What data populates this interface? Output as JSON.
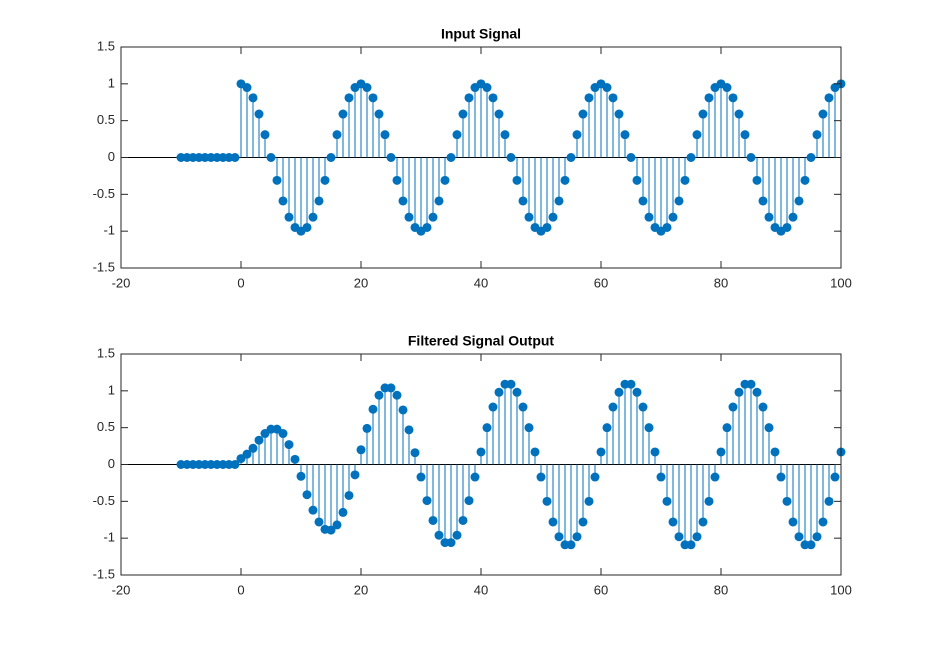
{
  "chart_data": [
    {
      "type": "stem",
      "title": "Input Signal",
      "color": "#0072bd",
      "xlim": [
        -20,
        100
      ],
      "ylim": [
        -1.5,
        1.5
      ],
      "xticks": [
        -20,
        0,
        20,
        40,
        60,
        80,
        100
      ],
      "yticks": [
        -1.5,
        -1,
        -0.5,
        0,
        0.5,
        1,
        1.5
      ],
      "x": [
        -10,
        -9,
        -8,
        -7,
        -6,
        -5,
        -4,
        -3,
        -2,
        -1,
        0,
        1,
        2,
        3,
        4,
        5,
        6,
        7,
        8,
        9,
        10,
        11,
        12,
        13,
        14,
        15,
        16,
        17,
        18,
        19,
        20,
        21,
        22,
        23,
        24,
        25,
        26,
        27,
        28,
        29,
        30,
        31,
        32,
        33,
        34,
        35,
        36,
        37,
        38,
        39,
        40,
        41,
        42,
        43,
        44,
        45,
        46,
        47,
        48,
        49,
        50,
        51,
        52,
        53,
        54,
        55,
        56,
        57,
        58,
        59,
        60,
        61,
        62,
        63,
        64,
        65,
        66,
        67,
        68,
        69,
        70,
        71,
        72,
        73,
        74,
        75,
        76,
        77,
        78,
        79,
        80,
        81,
        82,
        83,
        84,
        85,
        86,
        87,
        88,
        89,
        90,
        91,
        92,
        93,
        94,
        95,
        96,
        97,
        98,
        99,
        100
      ],
      "values": [
        0,
        0,
        0,
        0,
        0,
        0,
        0,
        0,
        0,
        0,
        1,
        0.95,
        0.81,
        0.59,
        0.31,
        0,
        -0.31,
        -0.59,
        -0.81,
        -0.95,
        -1,
        -0.95,
        -0.81,
        -0.59,
        -0.31,
        0,
        0.31,
        0.59,
        0.81,
        0.95,
        1,
        0.95,
        0.81,
        0.59,
        0.31,
        0,
        -0.31,
        -0.59,
        -0.81,
        -0.95,
        -1,
        -0.95,
        -0.81,
        -0.59,
        -0.31,
        0,
        0.31,
        0.59,
        0.81,
        0.95,
        1,
        0.95,
        0.81,
        0.59,
        0.31,
        0,
        -0.31,
        -0.59,
        -0.81,
        -0.95,
        -1,
        -0.95,
        -0.81,
        -0.59,
        -0.31,
        0,
        0.31,
        0.59,
        0.81,
        0.95,
        1,
        0.95,
        0.81,
        0.59,
        0.31,
        0,
        -0.31,
        -0.59,
        -0.81,
        -0.95,
        -1,
        -0.95,
        -0.81,
        -0.59,
        -0.31,
        0,
        0.31,
        0.59,
        0.81,
        0.95,
        1,
        0.95,
        0.81,
        0.59,
        0.31,
        0,
        -0.31,
        -0.59,
        -0.81,
        -0.95,
        -1,
        -0.95,
        -0.81,
        -0.59,
        -0.31,
        0,
        0.31,
        0.59,
        0.81,
        0.95,
        1
      ]
    },
    {
      "type": "stem",
      "title": "Filtered Signal Output",
      "color": "#0072bd",
      "xlim": [
        -20,
        100
      ],
      "ylim": [
        -1.5,
        1.5
      ],
      "xticks": [
        -20,
        0,
        20,
        40,
        60,
        80,
        100
      ],
      "yticks": [
        -1.5,
        -1,
        -0.5,
        0,
        0.5,
        1,
        1.5
      ],
      "x": [
        -10,
        -9,
        -8,
        -7,
        -6,
        -5,
        -4,
        -3,
        -2,
        -1,
        0,
        1,
        2,
        3,
        4,
        5,
        6,
        7,
        8,
        9,
        10,
        11,
        12,
        13,
        14,
        15,
        16,
        17,
        18,
        19,
        20,
        21,
        22,
        23,
        24,
        25,
        26,
        27,
        28,
        29,
        30,
        31,
        32,
        33,
        34,
        35,
        36,
        37,
        38,
        39,
        40,
        41,
        42,
        43,
        44,
        45,
        46,
        47,
        48,
        49,
        50,
        51,
        52,
        53,
        54,
        55,
        56,
        57,
        58,
        59,
        60,
        61,
        62,
        63,
        64,
        65,
        66,
        67,
        68,
        69,
        70,
        71,
        72,
        73,
        74,
        75,
        76,
        77,
        78,
        79,
        80,
        81,
        82,
        83,
        84,
        85,
        86,
        87,
        88,
        89,
        90,
        91,
        92,
        93,
        94,
        95,
        96,
        97,
        98,
        99,
        100
      ],
      "values": [
        0,
        0,
        0,
        0,
        0,
        0,
        0,
        0,
        0,
        0,
        0.08,
        0.14,
        0.22,
        0.33,
        0.42,
        0.48,
        0.48,
        0.42,
        0.27,
        0.07,
        -0.16,
        -0.41,
        -0.62,
        -0.78,
        -0.88,
        -0.89,
        -0.82,
        -0.65,
        -0.42,
        -0.14,
        0.2,
        0.49,
        0.75,
        0.94,
        1.04,
        1.04,
        0.94,
        0.74,
        0.47,
        0.16,
        -0.17,
        -0.49,
        -0.76,
        -0.96,
        -1.06,
        -1.06,
        -0.96,
        -0.76,
        -0.49,
        -0.17,
        0.17,
        0.5,
        0.78,
        0.98,
        1.09,
        1.09,
        0.98,
        0.78,
        0.5,
        0.17,
        -0.17,
        -0.5,
        -0.78,
        -0.98,
        -1.09,
        -1.09,
        -0.98,
        -0.78,
        -0.5,
        -0.17,
        0.17,
        0.5,
        0.78,
        0.98,
        1.09,
        1.09,
        0.98,
        0.78,
        0.5,
        0.17,
        -0.17,
        -0.5,
        -0.78,
        -0.98,
        -1.09,
        -1.09,
        -0.98,
        -0.78,
        -0.5,
        -0.17,
        0.17,
        0.5,
        0.78,
        0.98,
        1.09,
        1.09,
        0.98,
        0.78,
        0.5,
        0.17,
        -0.17,
        -0.5,
        -0.78,
        -0.98,
        -1.09,
        -1.09,
        -0.98,
        -0.78,
        -0.5,
        -0.17,
        0.17
      ]
    }
  ]
}
